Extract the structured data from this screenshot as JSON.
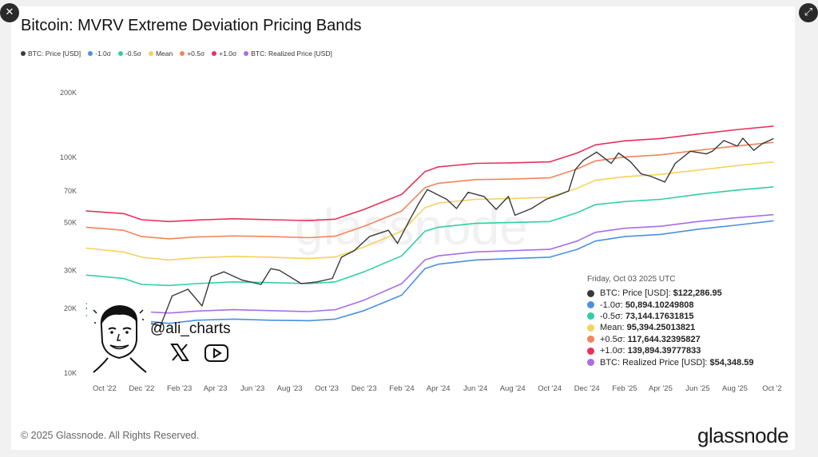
{
  "window": {
    "close_label": "✕",
    "expand_label": "⤢"
  },
  "title": "Bitcoin: MVRV Extreme Deviation Pricing Bands",
  "watermark": "glassnode",
  "copyright": "© 2025 Glassnode. All Rights Reserved.",
  "brand": "glassnode",
  "overlay": {
    "handle": "@ali_charts",
    "icons": [
      "x-logo-icon",
      "youtube-icon"
    ]
  },
  "colors": {
    "price": "#3a3a3a",
    "minus1": "#4a90e2",
    "minus05": "#2ecfa6",
    "mean": "#f5d25c",
    "plus05": "#f2845c",
    "plus1": "#e8305a",
    "realized": "#a66ee8"
  },
  "tooltip": {
    "date": "Friday, Oct 03 2025 UTC",
    "rows": [
      {
        "label": "BTC: Price [USD]:",
        "value": "$122,286.95",
        "color": "#3a3a3a"
      },
      {
        "label": "-1.0σ:",
        "value": "50,894.10249808",
        "color": "#4a90e2"
      },
      {
        "label": "-0.5σ:",
        "value": "73,144.17631815",
        "color": "#2ecfa6"
      },
      {
        "label": "Mean:",
        "value": "95,394.25013821",
        "color": "#f5d25c"
      },
      {
        "label": "+0.5σ:",
        "value": "117,644.32395827",
        "color": "#f2845c"
      },
      {
        "label": "+1.0σ:",
        "value": "139,894.39777833",
        "color": "#e8305a"
      },
      {
        "label": "BTC: Realized Price [USD]:",
        "value": "$54,348.59",
        "color": "#a66ee8"
      }
    ]
  },
  "chart_data": {
    "type": "line",
    "title": "Bitcoin: MVRV Extreme Deviation Pricing Bands",
    "yscale": "log",
    "ylim": [
      10000,
      200000
    ],
    "xlim": [
      "2022-09-01",
      "2025-10-03"
    ],
    "grid": false,
    "legend_position": "top-left",
    "y_ticks": [
      {
        "value": 10000,
        "label": "10K"
      },
      {
        "value": 20000,
        "label": "20K"
      },
      {
        "value": 30000,
        "label": "30K"
      },
      {
        "value": 50000,
        "label": "50K"
      },
      {
        "value": 70000,
        "label": "70K"
      },
      {
        "value": 100000,
        "label": "100K"
      },
      {
        "value": 200000,
        "label": "200K"
      }
    ],
    "x_ticks": [
      {
        "date": "2022-10-01",
        "label": "Oct '22"
      },
      {
        "date": "2022-12-01",
        "label": "Dec '22"
      },
      {
        "date": "2023-02-01",
        "label": "Feb '23"
      },
      {
        "date": "2023-04-01",
        "label": "Apr '23"
      },
      {
        "date": "2023-06-01",
        "label": "Jun '23"
      },
      {
        "date": "2023-08-01",
        "label": "Aug '23"
      },
      {
        "date": "2023-10-01",
        "label": "Oct '23"
      },
      {
        "date": "2023-12-01",
        "label": "Dec '23"
      },
      {
        "date": "2024-02-01",
        "label": "Feb '24"
      },
      {
        "date": "2024-04-01",
        "label": "Apr '24"
      },
      {
        "date": "2024-06-01",
        "label": "Jun '24"
      },
      {
        "date": "2024-08-01",
        "label": "Aug '24"
      },
      {
        "date": "2024-10-01",
        "label": "Oct '24"
      },
      {
        "date": "2024-12-01",
        "label": "Dec '24"
      },
      {
        "date": "2025-02-01",
        "label": "Feb '25"
      },
      {
        "date": "2025-04-01",
        "label": "Apr '25"
      },
      {
        "date": "2025-06-01",
        "label": "Jun '25"
      },
      {
        "date": "2025-08-01",
        "label": "Aug '25"
      },
      {
        "date": "2025-10-01",
        "label": "Oct '2"
      }
    ],
    "series": [
      {
        "key": "price",
        "name": "BTC: Price [USD]",
        "color": "#3a3a3a",
        "x": [
          "2022-09-01",
          "2022-10-01",
          "2022-11-01",
          "2022-11-15",
          "2022-12-15",
          "2023-01-01",
          "2023-01-20",
          "2023-02-15",
          "2023-03-10",
          "2023-03-25",
          "2023-04-15",
          "2023-05-15",
          "2023-06-15",
          "2023-07-01",
          "2023-07-15",
          "2023-08-20",
          "2023-09-15",
          "2023-10-10",
          "2023-10-25",
          "2023-11-15",
          "2023-12-10",
          "2024-01-10",
          "2024-01-25",
          "2024-02-15",
          "2024-03-01",
          "2024-03-14",
          "2024-04-15",
          "2024-05-01",
          "2024-05-20",
          "2024-06-15",
          "2024-07-05",
          "2024-07-25",
          "2024-08-05",
          "2024-09-01",
          "2024-09-25",
          "2024-10-15",
          "2024-11-01",
          "2024-11-12",
          "2024-11-25",
          "2024-12-17",
          "2025-01-10",
          "2025-01-22",
          "2025-02-10",
          "2025-02-28",
          "2025-03-15",
          "2025-04-08",
          "2025-04-25",
          "2025-05-20",
          "2025-06-15",
          "2025-06-25",
          "2025-07-14",
          "2025-08-05",
          "2025-08-14",
          "2025-09-01",
          "2025-09-15",
          "2025-10-03"
        ],
        "y": [
          20000,
          19500,
          20500,
          16500,
          17000,
          16600,
          22800,
          24500,
          20500,
          28000,
          29500,
          27000,
          25800,
          30500,
          30000,
          26000,
          26500,
          27500,
          34500,
          37000,
          43000,
          46000,
          40000,
          52000,
          62000,
          71000,
          64000,
          58000,
          69000,
          66000,
          57500,
          66000,
          54000,
          58000,
          64000,
          67000,
          70000,
          88000,
          97000,
          106000,
          94000,
          105000,
          96000,
          84000,
          82000,
          77000,
          94000,
          107000,
          104000,
          107000,
          120000,
          113000,
          123000,
          108000,
          116000,
          122287
        ]
      },
      {
        "key": "minus1",
        "name": "-1.0σ",
        "color": "#4a90e2",
        "x": [
          "2022-09-01",
          "2022-11-01",
          "2022-12-01",
          "2023-01-15",
          "2023-03-01",
          "2023-05-01",
          "2023-07-01",
          "2023-09-01",
          "2023-10-15",
          "2023-12-01",
          "2024-02-01",
          "2024-03-10",
          "2024-04-01",
          "2024-06-01",
          "2024-08-01",
          "2024-10-01",
          "2024-11-15",
          "2024-12-15",
          "2025-02-01",
          "2025-04-01",
          "2025-06-01",
          "2025-08-01",
          "2025-10-03"
        ],
        "y": [
          18500,
          18200,
          17500,
          17000,
          17600,
          17800,
          17600,
          17500,
          17800,
          19500,
          23000,
          30500,
          32000,
          33500,
          34000,
          34500,
          37500,
          41000,
          43000,
          44000,
          46500,
          48500,
          50894
        ]
      },
      {
        "key": "minus05",
        "name": "-0.5σ",
        "color": "#2ecfa6",
        "x": [
          "2022-09-01",
          "2022-11-01",
          "2022-12-01",
          "2023-01-15",
          "2023-03-01",
          "2023-05-01",
          "2023-07-01",
          "2023-09-01",
          "2023-10-15",
          "2023-12-01",
          "2024-02-01",
          "2024-03-10",
          "2024-04-01",
          "2024-06-01",
          "2024-08-01",
          "2024-10-01",
          "2024-11-15",
          "2024-12-15",
          "2025-02-01",
          "2025-04-01",
          "2025-06-01",
          "2025-08-01",
          "2025-10-03"
        ],
        "y": [
          28500,
          27500,
          25800,
          25500,
          26000,
          26500,
          26300,
          26000,
          26500,
          29500,
          35000,
          45500,
          47500,
          49500,
          50000,
          50500,
          55500,
          60500,
          62500,
          64000,
          67500,
          70500,
          73144
        ]
      },
      {
        "key": "mean",
        "name": "Mean",
        "color": "#f5d25c",
        "x": [
          "2022-09-01",
          "2022-11-01",
          "2022-12-01",
          "2023-01-15",
          "2023-03-01",
          "2023-05-01",
          "2023-07-01",
          "2023-09-01",
          "2023-10-15",
          "2023-12-01",
          "2024-02-01",
          "2024-03-10",
          "2024-04-01",
          "2024-06-01",
          "2024-08-01",
          "2024-10-01",
          "2024-11-15",
          "2024-12-15",
          "2025-02-01",
          "2025-04-01",
          "2025-06-01",
          "2025-08-01",
          "2025-10-03"
        ],
        "y": [
          38000,
          36500,
          34500,
          33500,
          34300,
          34800,
          34500,
          34000,
          34600,
          38500,
          45500,
          58500,
          61500,
          64000,
          64500,
          65500,
          72000,
          78500,
          81500,
          83500,
          87500,
          91500,
          95394
        ]
      },
      {
        "key": "plus05",
        "name": "+0.5σ",
        "color": "#f2845c",
        "x": [
          "2022-09-01",
          "2022-11-01",
          "2022-12-01",
          "2023-01-15",
          "2023-03-01",
          "2023-05-01",
          "2023-07-01",
          "2023-09-01",
          "2023-10-15",
          "2023-12-01",
          "2024-02-01",
          "2024-03-10",
          "2024-04-01",
          "2024-06-01",
          "2024-08-01",
          "2024-10-01",
          "2024-11-15",
          "2024-12-15",
          "2025-02-01",
          "2025-04-01",
          "2025-06-01",
          "2025-08-01",
          "2025-10-03"
        ],
        "y": [
          47500,
          46000,
          43000,
          42000,
          42800,
          43300,
          43000,
          42500,
          43200,
          48000,
          56500,
          72500,
          76000,
          79000,
          79500,
          80500,
          88500,
          96500,
          100500,
          103000,
          108000,
          113000,
          117644
        ]
      },
      {
        "key": "plus1",
        "name": "+1.0σ",
        "color": "#e8305a",
        "x": [
          "2022-09-01",
          "2022-11-01",
          "2022-12-01",
          "2023-01-15",
          "2023-03-01",
          "2023-05-01",
          "2023-07-01",
          "2023-09-01",
          "2023-10-15",
          "2023-12-01",
          "2024-02-01",
          "2024-03-10",
          "2024-04-01",
          "2024-06-01",
          "2024-08-01",
          "2024-10-01",
          "2024-11-15",
          "2024-12-15",
          "2025-02-01",
          "2025-04-01",
          "2025-06-01",
          "2025-08-01",
          "2025-10-03"
        ],
        "y": [
          56500,
          55000,
          51500,
          50500,
          51300,
          52000,
          51500,
          51000,
          51800,
          57500,
          67500,
          86000,
          90500,
          94000,
          94500,
          95500,
          105000,
          114500,
          119500,
          122500,
          128500,
          134500,
          139894
        ]
      },
      {
        "key": "realized",
        "name": "BTC: Realized Price [USD]",
        "color": "#a66ee8",
        "x": [
          "2022-09-01",
          "2022-11-01",
          "2022-12-01",
          "2023-01-15",
          "2023-03-01",
          "2023-05-01",
          "2023-07-01",
          "2023-09-01",
          "2023-10-15",
          "2023-12-01",
          "2024-02-01",
          "2024-03-10",
          "2024-04-01",
          "2024-06-01",
          "2024-08-01",
          "2024-10-01",
          "2024-11-15",
          "2024-12-15",
          "2025-02-01",
          "2025-04-01",
          "2025-06-01",
          "2025-08-01",
          "2025-10-03"
        ],
        "y": [
          21000,
          20500,
          19300,
          19000,
          19400,
          19700,
          19500,
          19300,
          19700,
          21800,
          26000,
          33500,
          35000,
          36500,
          37000,
          37500,
          41000,
          45000,
          47000,
          48000,
          50500,
          52500,
          54349
        ]
      }
    ]
  }
}
